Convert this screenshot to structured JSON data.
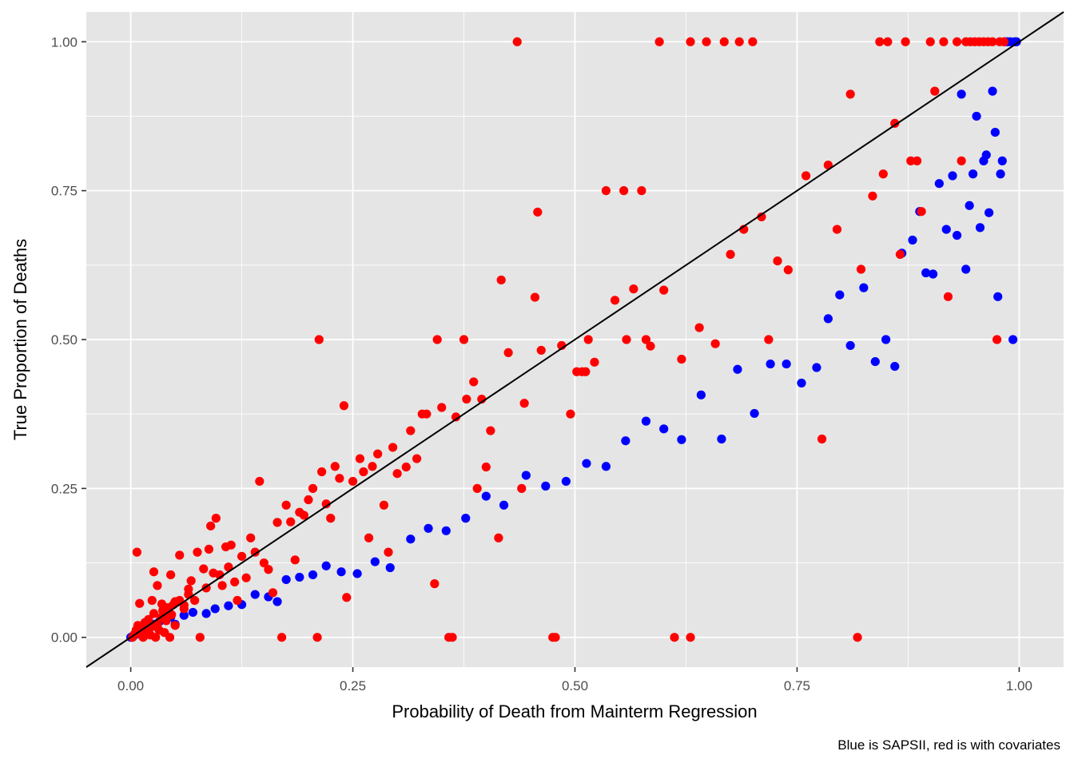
{
  "chart_data": {
    "type": "scatter",
    "title": "",
    "xlabel": "Probability of Death from Mainterm Regression",
    "ylabel": "True Proportion of Deaths",
    "caption": "Blue is SAPSII, red is with covariates",
    "xlim": [
      -0.05,
      1.05
    ],
    "ylim": [
      -0.05,
      1.05
    ],
    "x_ticks": [
      {
        "value": 0,
        "label": "0.00"
      },
      {
        "value": 0.25,
        "label": "0.25"
      },
      {
        "value": 0.5,
        "label": "0.50"
      },
      {
        "value": 0.75,
        "label": "0.75"
      },
      {
        "value": 1,
        "label": "1.00"
      }
    ],
    "y_ticks": [
      {
        "value": 0,
        "label": "0.00"
      },
      {
        "value": 0.25,
        "label": "0.25"
      },
      {
        "value": 0.5,
        "label": "0.50"
      },
      {
        "value": 0.75,
        "label": "0.75"
      },
      {
        "value": 1,
        "label": "1.00"
      }
    ],
    "grid": true,
    "reference_line": {
      "slope": 1,
      "intercept": 0,
      "color": "#000000"
    },
    "colors": {
      "panel": "#e5e5e5",
      "grid": "#ffffff",
      "blue": "#0000ff",
      "red": "#ff0000"
    },
    "series": [
      {
        "color": "#0000ff",
        "points": [
          [
            0.0,
            0.0
          ],
          [
            0.003,
            0.003
          ],
          [
            0.006,
            0.005
          ],
          [
            0.01,
            0.008
          ],
          [
            0.014,
            0.012
          ],
          [
            0.018,
            0.015
          ],
          [
            0.022,
            0.018
          ],
          [
            0.027,
            0.022
          ],
          [
            0.032,
            0.026
          ],
          [
            0.038,
            0.03
          ],
          [
            0.045,
            0.034
          ],
          [
            0.05,
            0.022
          ],
          [
            0.06,
            0.037
          ],
          [
            0.07,
            0.042
          ],
          [
            0.085,
            0.04
          ],
          [
            0.095,
            0.048
          ],
          [
            0.11,
            0.053
          ],
          [
            0.125,
            0.055
          ],
          [
            0.14,
            0.072
          ],
          [
            0.155,
            0.068
          ],
          [
            0.165,
            0.06
          ],
          [
            0.175,
            0.097
          ],
          [
            0.19,
            0.101
          ],
          [
            0.205,
            0.105
          ],
          [
            0.22,
            0.12
          ],
          [
            0.237,
            0.11
          ],
          [
            0.255,
            0.107
          ],
          [
            0.275,
            0.127
          ],
          [
            0.292,
            0.117
          ],
          [
            0.315,
            0.165
          ],
          [
            0.335,
            0.183
          ],
          [
            0.355,
            0.179
          ],
          [
            0.377,
            0.2
          ],
          [
            0.4,
            0.237
          ],
          [
            0.42,
            0.222
          ],
          [
            0.445,
            0.272
          ],
          [
            0.467,
            0.254
          ],
          [
            0.49,
            0.262
          ],
          [
            0.513,
            0.292
          ],
          [
            0.535,
            0.287
          ],
          [
            0.557,
            0.33
          ],
          [
            0.58,
            0.363
          ],
          [
            0.6,
            0.35
          ],
          [
            0.62,
            0.332
          ],
          [
            0.642,
            0.407
          ],
          [
            0.665,
            0.333
          ],
          [
            0.683,
            0.45
          ],
          [
            0.702,
            0.376
          ],
          [
            0.72,
            0.459
          ],
          [
            0.738,
            0.459
          ],
          [
            0.755,
            0.427
          ],
          [
            0.772,
            0.453
          ],
          [
            0.785,
            0.535
          ],
          [
            0.798,
            0.575
          ],
          [
            0.81,
            0.49
          ],
          [
            0.825,
            0.587
          ],
          [
            0.838,
            0.463
          ],
          [
            0.85,
            0.5
          ],
          [
            0.86,
            0.455
          ],
          [
            0.868,
            0.645
          ],
          [
            0.88,
            0.667
          ],
          [
            0.888,
            0.715
          ],
          [
            0.895,
            0.612
          ],
          [
            0.903,
            0.61
          ],
          [
            0.91,
            0.762
          ],
          [
            0.918,
            0.685
          ],
          [
            0.925,
            0.775
          ],
          [
            0.93,
            0.675
          ],
          [
            0.935,
            0.912
          ],
          [
            0.94,
            0.618
          ],
          [
            0.944,
            0.725
          ],
          [
            0.948,
            0.778
          ],
          [
            0.952,
            0.875
          ],
          [
            0.956,
            0.688
          ],
          [
            0.96,
            0.8
          ],
          [
            0.963,
            0.81
          ],
          [
            0.966,
            0.713
          ],
          [
            0.97,
            0.917
          ],
          [
            0.973,
            0.848
          ],
          [
            0.976,
            0.572
          ],
          [
            0.979,
            0.778
          ],
          [
            0.981,
            0.8
          ],
          [
            0.984,
            1.0
          ],
          [
            0.987,
            1.0
          ],
          [
            0.99,
            1.0
          ],
          [
            0.993,
            0.5
          ],
          [
            0.995,
            1.0
          ],
          [
            0.997,
            1.0
          ]
        ]
      },
      {
        "color": "#ff0000",
        "points": [
          [
            0.002,
            0.0
          ],
          [
            0.004,
            0.005
          ],
          [
            0.006,
            0.012
          ],
          [
            0.008,
            0.02
          ],
          [
            0.01,
            0.006
          ],
          [
            0.012,
            0.015
          ],
          [
            0.014,
            0.0
          ],
          [
            0.016,
            0.025
          ],
          [
            0.018,
            0.01
          ],
          [
            0.02,
            0.03
          ],
          [
            0.022,
            0.004
          ],
          [
            0.024,
            0.018
          ],
          [
            0.026,
            0.04
          ],
          [
            0.028,
            0.0
          ],
          [
            0.03,
            0.022
          ],
          [
            0.032,
            0.012
          ],
          [
            0.034,
            0.033
          ],
          [
            0.036,
            0.045
          ],
          [
            0.038,
            0.008
          ],
          [
            0.04,
            0.028
          ],
          [
            0.042,
            0.05
          ],
          [
            0.044,
            0.0
          ],
          [
            0.046,
            0.038
          ],
          [
            0.048,
            0.055
          ],
          [
            0.05,
            0.02
          ],
          [
            0.055,
            0.062
          ],
          [
            0.06,
            0.048
          ],
          [
            0.065,
            0.072
          ],
          [
            0.007,
            0.143
          ],
          [
            0.01,
            0.057
          ],
          [
            0.024,
            0.062
          ],
          [
            0.026,
            0.11
          ],
          [
            0.03,
            0.087
          ],
          [
            0.035,
            0.056
          ],
          [
            0.04,
            0.04
          ],
          [
            0.045,
            0.105
          ],
          [
            0.05,
            0.06
          ],
          [
            0.055,
            0.138
          ],
          [
            0.06,
            0.054
          ],
          [
            0.065,
            0.081
          ],
          [
            0.068,
            0.095
          ],
          [
            0.072,
            0.062
          ],
          [
            0.075,
            0.143
          ],
          [
            0.078,
            0.0
          ],
          [
            0.082,
            0.115
          ],
          [
            0.085,
            0.083
          ],
          [
            0.088,
            0.148
          ],
          [
            0.09,
            0.187
          ],
          [
            0.093,
            0.108
          ],
          [
            0.096,
            0.2
          ],
          [
            0.1,
            0.105
          ],
          [
            0.103,
            0.087
          ],
          [
            0.107,
            0.152
          ],
          [
            0.11,
            0.118
          ],
          [
            0.113,
            0.155
          ],
          [
            0.117,
            0.093
          ],
          [
            0.12,
            0.062
          ],
          [
            0.125,
            0.136
          ],
          [
            0.13,
            0.1
          ],
          [
            0.135,
            0.167
          ],
          [
            0.14,
            0.143
          ],
          [
            0.145,
            0.262
          ],
          [
            0.15,
            0.125
          ],
          [
            0.155,
            0.114
          ],
          [
            0.16,
            0.075
          ],
          [
            0.165,
            0.193
          ],
          [
            0.17,
            0.0
          ],
          [
            0.175,
            0.222
          ],
          [
            0.18,
            0.194
          ],
          [
            0.185,
            0.13
          ],
          [
            0.19,
            0.21
          ],
          [
            0.195,
            0.205
          ],
          [
            0.2,
            0.231
          ],
          [
            0.205,
            0.25
          ],
          [
            0.21,
            0.0
          ],
          [
            0.212,
            0.5
          ],
          [
            0.215,
            0.278
          ],
          [
            0.22,
            0.224
          ],
          [
            0.225,
            0.2
          ],
          [
            0.23,
            0.287
          ],
          [
            0.235,
            0.267
          ],
          [
            0.24,
            0.389
          ],
          [
            0.243,
            0.067
          ],
          [
            0.25,
            0.262
          ],
          [
            0.258,
            0.3
          ],
          [
            0.262,
            0.278
          ],
          [
            0.268,
            0.167
          ],
          [
            0.272,
            0.287
          ],
          [
            0.278,
            0.308
          ],
          [
            0.285,
            0.222
          ],
          [
            0.29,
            0.143
          ],
          [
            0.295,
            0.319
          ],
          [
            0.3,
            0.275
          ],
          [
            0.31,
            0.286
          ],
          [
            0.315,
            0.347
          ],
          [
            0.322,
            0.3
          ],
          [
            0.328,
            0.375
          ],
          [
            0.333,
            0.375
          ],
          [
            0.342,
            0.09
          ],
          [
            0.345,
            0.5
          ],
          [
            0.35,
            0.386
          ],
          [
            0.358,
            0.0
          ],
          [
            0.362,
            0.0
          ],
          [
            0.366,
            0.37
          ],
          [
            0.375,
            0.5
          ],
          [
            0.378,
            0.4
          ],
          [
            0.386,
            0.429
          ],
          [
            0.39,
            0.25
          ],
          [
            0.395,
            0.4
          ],
          [
            0.4,
            0.286
          ],
          [
            0.405,
            0.347
          ],
          [
            0.414,
            0.167
          ],
          [
            0.417,
            0.6
          ],
          [
            0.425,
            0.478
          ],
          [
            0.435,
            1.0
          ],
          [
            0.44,
            0.25
          ],
          [
            0.443,
            0.393
          ],
          [
            0.455,
            0.571
          ],
          [
            0.458,
            0.714
          ],
          [
            0.462,
            0.482
          ],
          [
            0.475,
            0.0
          ],
          [
            0.478,
            0.0
          ],
          [
            0.485,
            0.49
          ],
          [
            0.495,
            0.375
          ],
          [
            0.502,
            0.446
          ],
          [
            0.508,
            0.446
          ],
          [
            0.512,
            0.446
          ],
          [
            0.515,
            0.5
          ],
          [
            0.522,
            0.462
          ],
          [
            0.535,
            0.75
          ],
          [
            0.545,
            0.566
          ],
          [
            0.555,
            0.75
          ],
          [
            0.558,
            0.5
          ],
          [
            0.566,
            0.585
          ],
          [
            0.575,
            0.75
          ],
          [
            0.58,
            0.5
          ],
          [
            0.585,
            0.489
          ],
          [
            0.595,
            1.0
          ],
          [
            0.6,
            0.583
          ],
          [
            0.612,
            0.0
          ],
          [
            0.62,
            0.467
          ],
          [
            0.63,
            0.0
          ],
          [
            0.63,
            1.0
          ],
          [
            0.64,
            0.52
          ],
          [
            0.648,
            1.0
          ],
          [
            0.658,
            0.493
          ],
          [
            0.668,
            1.0
          ],
          [
            0.675,
            0.643
          ],
          [
            0.685,
            1.0
          ],
          [
            0.69,
            0.685
          ],
          [
            0.7,
            1.0
          ],
          [
            0.71,
            0.706
          ],
          [
            0.718,
            0.5
          ],
          [
            0.728,
            0.632
          ],
          [
            0.74,
            0.617
          ],
          [
            0.76,
            0.775
          ],
          [
            0.778,
            0.333
          ],
          [
            0.785,
            0.793
          ],
          [
            0.795,
            0.685
          ],
          [
            0.81,
            0.912
          ],
          [
            0.818,
            0.0
          ],
          [
            0.822,
            0.618
          ],
          [
            0.835,
            0.741
          ],
          [
            0.843,
            1.0
          ],
          [
            0.847,
            0.778
          ],
          [
            0.852,
            1.0
          ],
          [
            0.86,
            0.863
          ],
          [
            0.866,
            0.643
          ],
          [
            0.872,
            1.0
          ],
          [
            0.878,
            0.8
          ],
          [
            0.885,
            0.8
          ],
          [
            0.89,
            0.715
          ],
          [
            0.9,
            1.0
          ],
          [
            0.905,
            0.917
          ],
          [
            0.915,
            1.0
          ],
          [
            0.92,
            0.572
          ],
          [
            0.93,
            1.0
          ],
          [
            0.935,
            0.8
          ],
          [
            0.94,
            1.0
          ],
          [
            0.945,
            1.0
          ],
          [
            0.95,
            1.0
          ],
          [
            0.955,
            1.0
          ],
          [
            0.96,
            1.0
          ],
          [
            0.965,
            1.0
          ],
          [
            0.97,
            1.0
          ],
          [
            0.975,
            0.5
          ],
          [
            0.978,
            1.0
          ],
          [
            0.983,
            1.0
          ]
        ]
      }
    ]
  }
}
